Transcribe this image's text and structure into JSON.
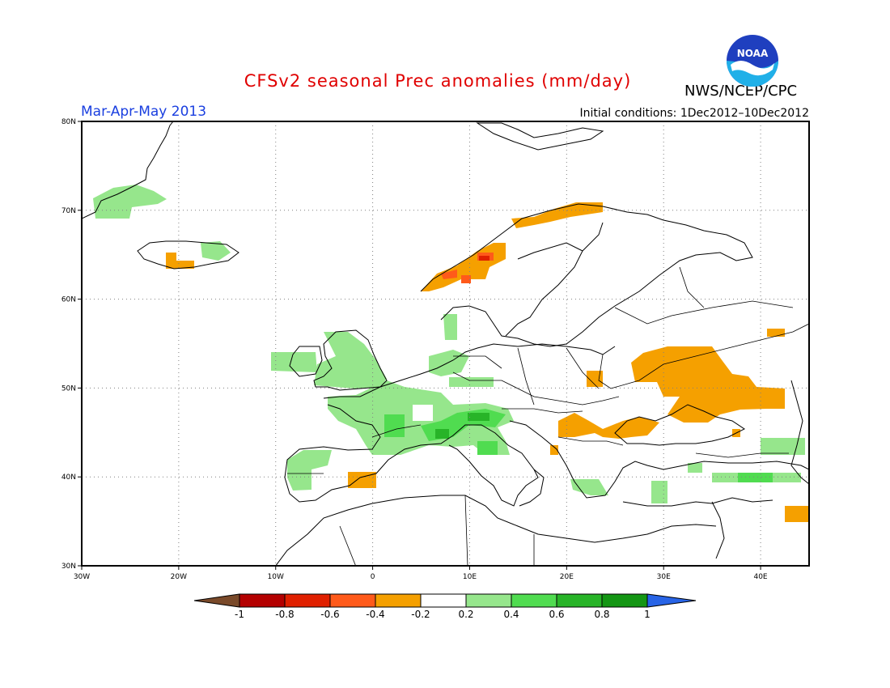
{
  "header": {
    "title": "CFSv2 seasonal Prec anomalies (mm/day)",
    "agency": "NWS/NCEP/CPC",
    "period": "Mar-Apr-May 2013",
    "initial_conditions": "Initial conditions: 1Dec2012–10Dec2012",
    "logo_text": "NOAA"
  },
  "map": {
    "lon_range": [
      -30,
      45
    ],
    "lat_range": [
      30,
      80
    ],
    "lat_ticks": [
      "80N",
      "70N",
      "60N",
      "50N",
      "40N",
      "30N"
    ],
    "lon_ticks": [
      "30W",
      "20W",
      "10W",
      "0",
      "10E",
      "20E",
      "30E",
      "40E"
    ]
  },
  "colorbar": {
    "labels": [
      "-1",
      "-0.8",
      "-0.6",
      "-0.4",
      "-0.2",
      "0.2",
      "0.4",
      "0.6",
      "0.8",
      "1"
    ],
    "colors": [
      "#7a4a2a",
      "#b40000",
      "#e02000",
      "#ff5a1a",
      "#f5a000",
      "#ffffff",
      "#96e68c",
      "#50dc50",
      "#28b428",
      "#149614",
      "#2864e6"
    ]
  },
  "anomaly_regions": [
    {
      "name": "Norway coast",
      "value": -0.4
    },
    {
      "name": "Norway coast core",
      "value": -0.6
    },
    {
      "name": "Northern Scandinavia",
      "value": -0.4
    },
    {
      "name": "Iceland south",
      "value": -0.4
    },
    {
      "name": "Greenland east",
      "value": 0.2
    },
    {
      "name": "Iceland east",
      "value": 0.2
    },
    {
      "name": "British Isles",
      "value": 0.2
    },
    {
      "name": "France and Central Europe",
      "value": 0.2
    },
    {
      "name": "Alps",
      "value": 0.4
    },
    {
      "name": "Italy",
      "value": 0.4
    },
    {
      "name": "Iberia",
      "value": 0.2
    },
    {
      "name": "Southern Spain",
      "value": -0.4
    },
    {
      "name": "Ukraine and Southern Russia",
      "value": -0.4
    },
    {
      "name": "Danube basin",
      "value": -0.4
    },
    {
      "name": "Greece",
      "value": 0.2
    },
    {
      "name": "Turkey and Caucasus",
      "value": 0.2
    },
    {
      "name": "Middle East",
      "value": -0.4
    }
  ]
}
